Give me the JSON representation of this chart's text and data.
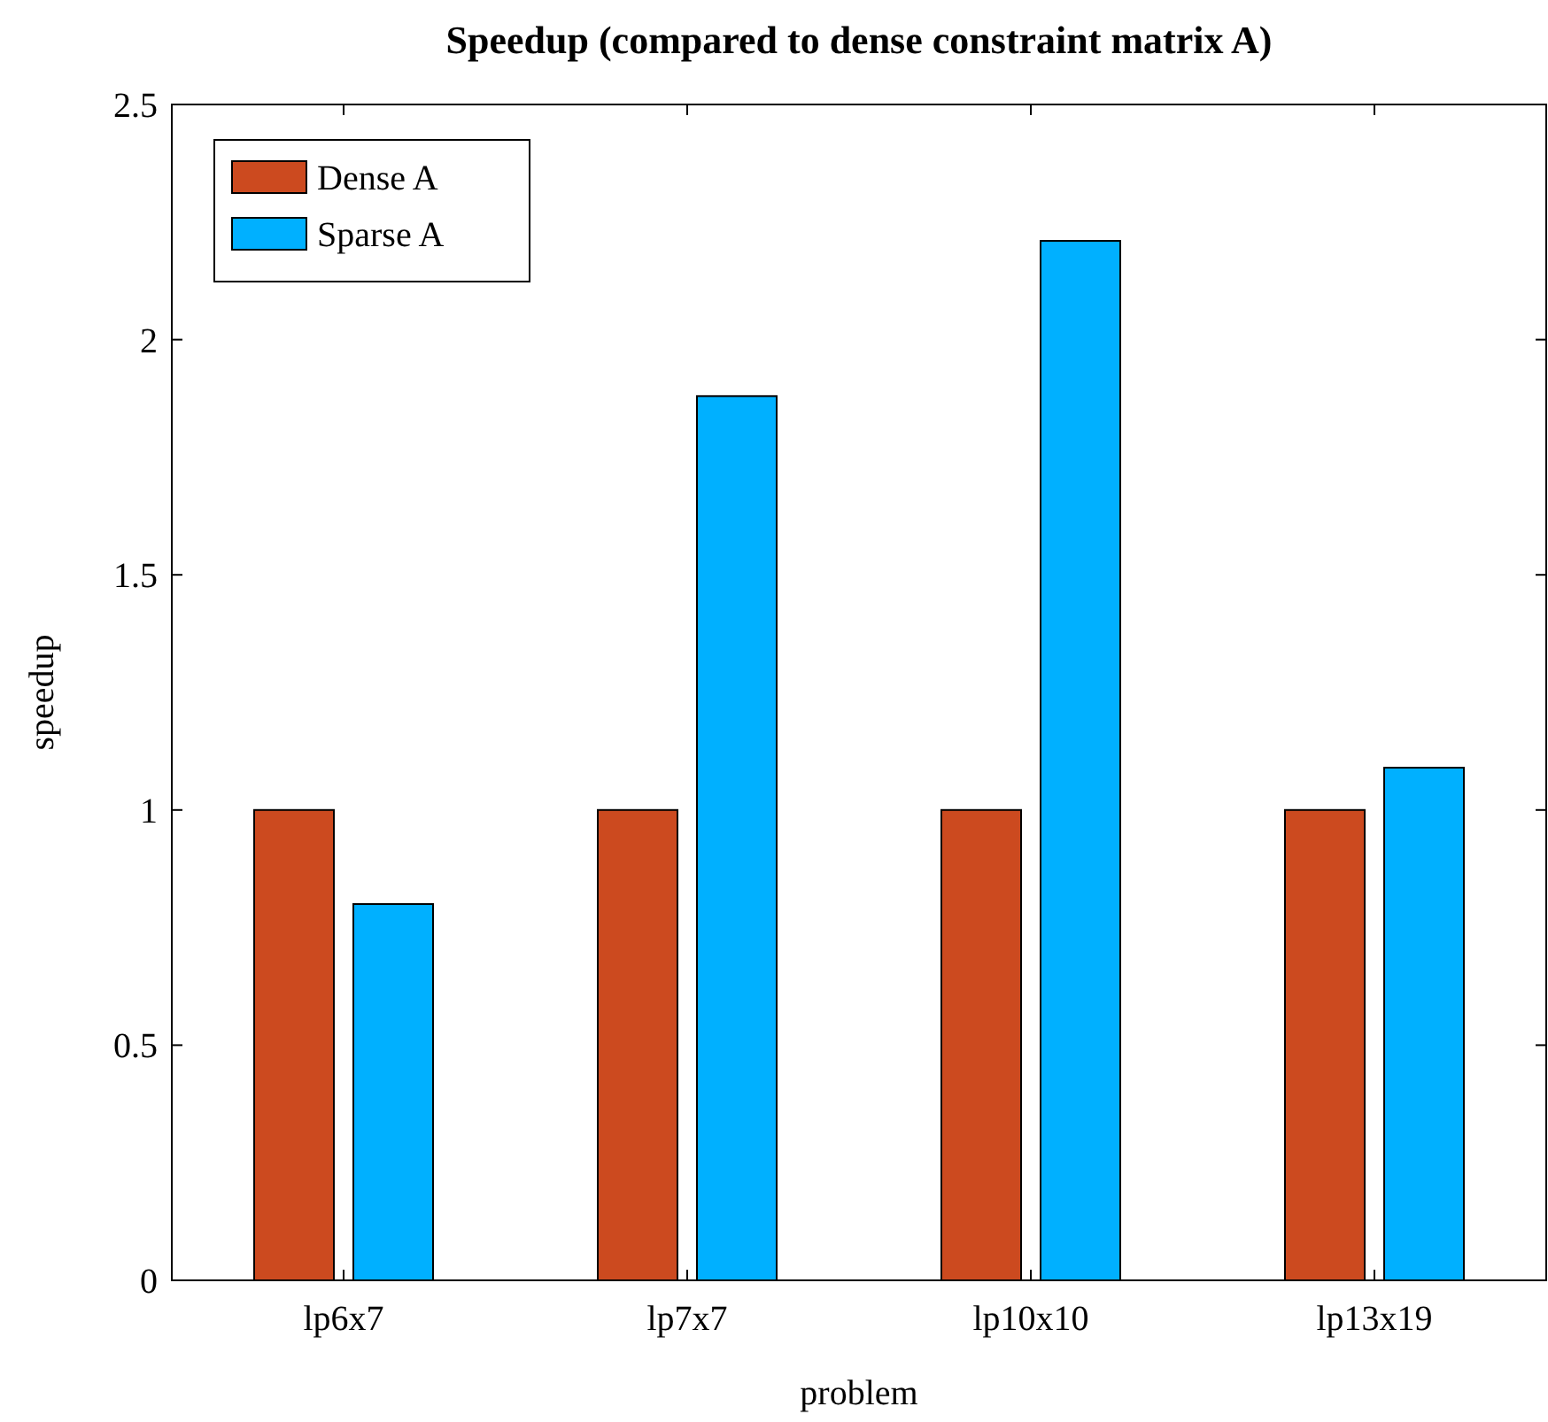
{
  "chart_data": {
    "type": "bar",
    "title": "Speedup (compared to dense constraint matrix A)",
    "xlabel": "problem",
    "ylabel": "speedup",
    "categories": [
      "lp6x7",
      "lp7x7",
      "lp10x10",
      "lp13x19"
    ],
    "series": [
      {
        "name": "Dense A",
        "color": "#cc4a1f",
        "values": [
          1,
          1,
          1,
          1
        ]
      },
      {
        "name": "Sparse A",
        "color": "#00b0ff",
        "values": [
          0.8,
          1.88,
          2.21,
          1.09
        ]
      }
    ],
    "ylim": [
      0,
      2.5
    ],
    "yticks": [
      0,
      0.5,
      1,
      1.5,
      2,
      2.5
    ],
    "legend": "top left",
    "grid": false
  }
}
